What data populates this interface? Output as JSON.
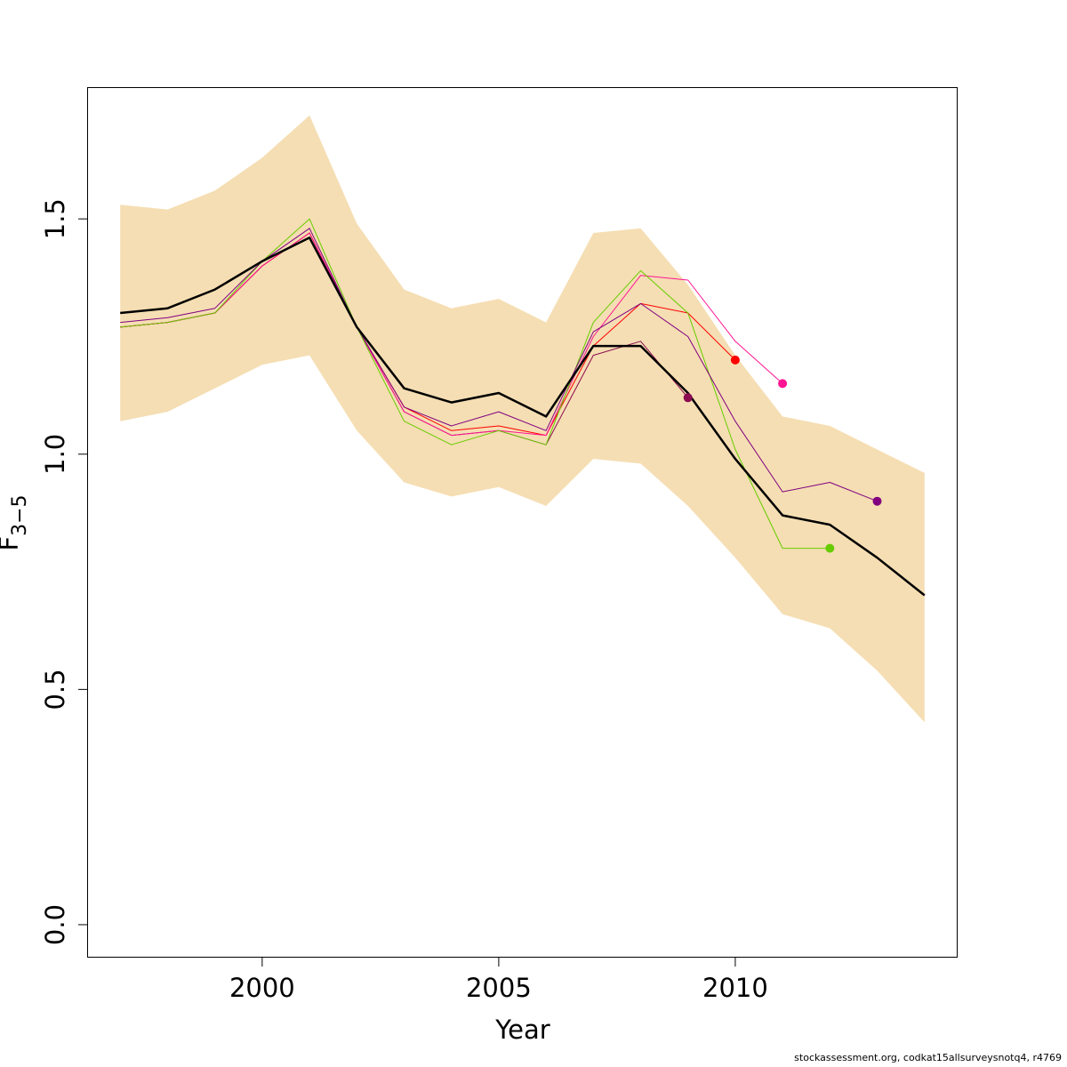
{
  "chart_data": {
    "type": "line",
    "title": "",
    "xlabel": "Year",
    "ylabel_base": "F",
    "ylabel_sub": "3−5",
    "xlim": [
      1996.3,
      2014.7
    ],
    "ylim": [
      -0.07,
      1.78
    ],
    "x_ticks": [
      2000,
      2005,
      2010
    ],
    "x_tick_labels": [
      "2000",
      "2005",
      "2010"
    ],
    "y_ticks": [
      0.0,
      0.5,
      1.0,
      1.5
    ],
    "y_tick_labels": [
      "0.0",
      "0.5",
      "1.0",
      "1.5"
    ],
    "grid": false,
    "band": {
      "color": "#F5DEB3",
      "x": [
        1997,
        1998,
        1999,
        2000,
        2001,
        2002,
        2003,
        2004,
        2005,
        2006,
        2007,
        2008,
        2009,
        2010,
        2011,
        2012,
        2013,
        2014
      ],
      "upper": [
        1.53,
        1.52,
        1.56,
        1.63,
        1.72,
        1.49,
        1.35,
        1.31,
        1.33,
        1.28,
        1.47,
        1.48,
        1.36,
        1.21,
        1.08,
        1.06,
        1.01,
        0.96
      ],
      "lower": [
        1.07,
        1.09,
        1.14,
        1.19,
        1.21,
        1.05,
        0.94,
        0.91,
        0.93,
        0.89,
        0.99,
        0.98,
        0.89,
        0.78,
        0.66,
        0.63,
        0.54,
        0.43
      ]
    },
    "main_series": {
      "color": "#000000",
      "x": [
        1997,
        1998,
        1999,
        2000,
        2001,
        2002,
        2003,
        2004,
        2005,
        2006,
        2007,
        2008,
        2009,
        2010,
        2011,
        2012,
        2013,
        2014
      ],
      "values": [
        1.3,
        1.31,
        1.35,
        1.41,
        1.46,
        1.27,
        1.14,
        1.11,
        1.13,
        1.08,
        1.23,
        1.23,
        1.13,
        0.99,
        0.87,
        0.85,
        0.78,
        0.7
      ]
    },
    "retro_series": [
      {
        "color": "#8B0A50",
        "x": [
          1997,
          1998,
          1999,
          2000,
          2001,
          2002,
          2003,
          2004,
          2005,
          2006,
          2007,
          2008,
          2009
        ],
        "values": [
          1.27,
          1.28,
          1.3,
          1.4,
          1.47,
          1.27,
          1.09,
          1.04,
          1.05,
          1.02,
          1.21,
          1.24,
          1.12
        ]
      },
      {
        "color": "#FF0000",
        "x": [
          1997,
          1998,
          1999,
          2000,
          2001,
          2002,
          2003,
          2004,
          2005,
          2006,
          2007,
          2008,
          2009,
          2010
        ],
        "values": [
          1.27,
          1.28,
          1.3,
          1.4,
          1.47,
          1.27,
          1.1,
          1.05,
          1.06,
          1.04,
          1.23,
          1.32,
          1.3,
          1.2
        ]
      },
      {
        "color": "#FF1493",
        "x": [
          1997,
          1998,
          1999,
          2000,
          2001,
          2002,
          2003,
          2004,
          2005,
          2006,
          2007,
          2008,
          2009,
          2010,
          2011
        ],
        "values": [
          1.27,
          1.28,
          1.3,
          1.4,
          1.47,
          1.27,
          1.09,
          1.04,
          1.05,
          1.04,
          1.25,
          1.38,
          1.37,
          1.24,
          1.15
        ]
      },
      {
        "color": "#66CC00",
        "x": [
          1997,
          1998,
          1999,
          2000,
          2001,
          2002,
          2003,
          2004,
          2005,
          2006,
          2007,
          2008,
          2009,
          2010,
          2011,
          2012
        ],
        "values": [
          1.27,
          1.28,
          1.3,
          1.41,
          1.5,
          1.27,
          1.07,
          1.02,
          1.05,
          1.02,
          1.28,
          1.39,
          1.3,
          1.01,
          0.8,
          0.8
        ]
      },
      {
        "color": "#800080",
        "x": [
          1997,
          1998,
          1999,
          2000,
          2001,
          2002,
          2003,
          2004,
          2005,
          2006,
          2007,
          2008,
          2009,
          2010,
          2011,
          2012,
          2013
        ],
        "values": [
          1.28,
          1.29,
          1.31,
          1.41,
          1.48,
          1.27,
          1.1,
          1.06,
          1.09,
          1.05,
          1.26,
          1.32,
          1.25,
          1.07,
          0.92,
          0.94,
          0.9
        ]
      }
    ]
  },
  "footer": {
    "credit": "stockassessment.org, codkat15allsurveysnotq4, r4769"
  }
}
